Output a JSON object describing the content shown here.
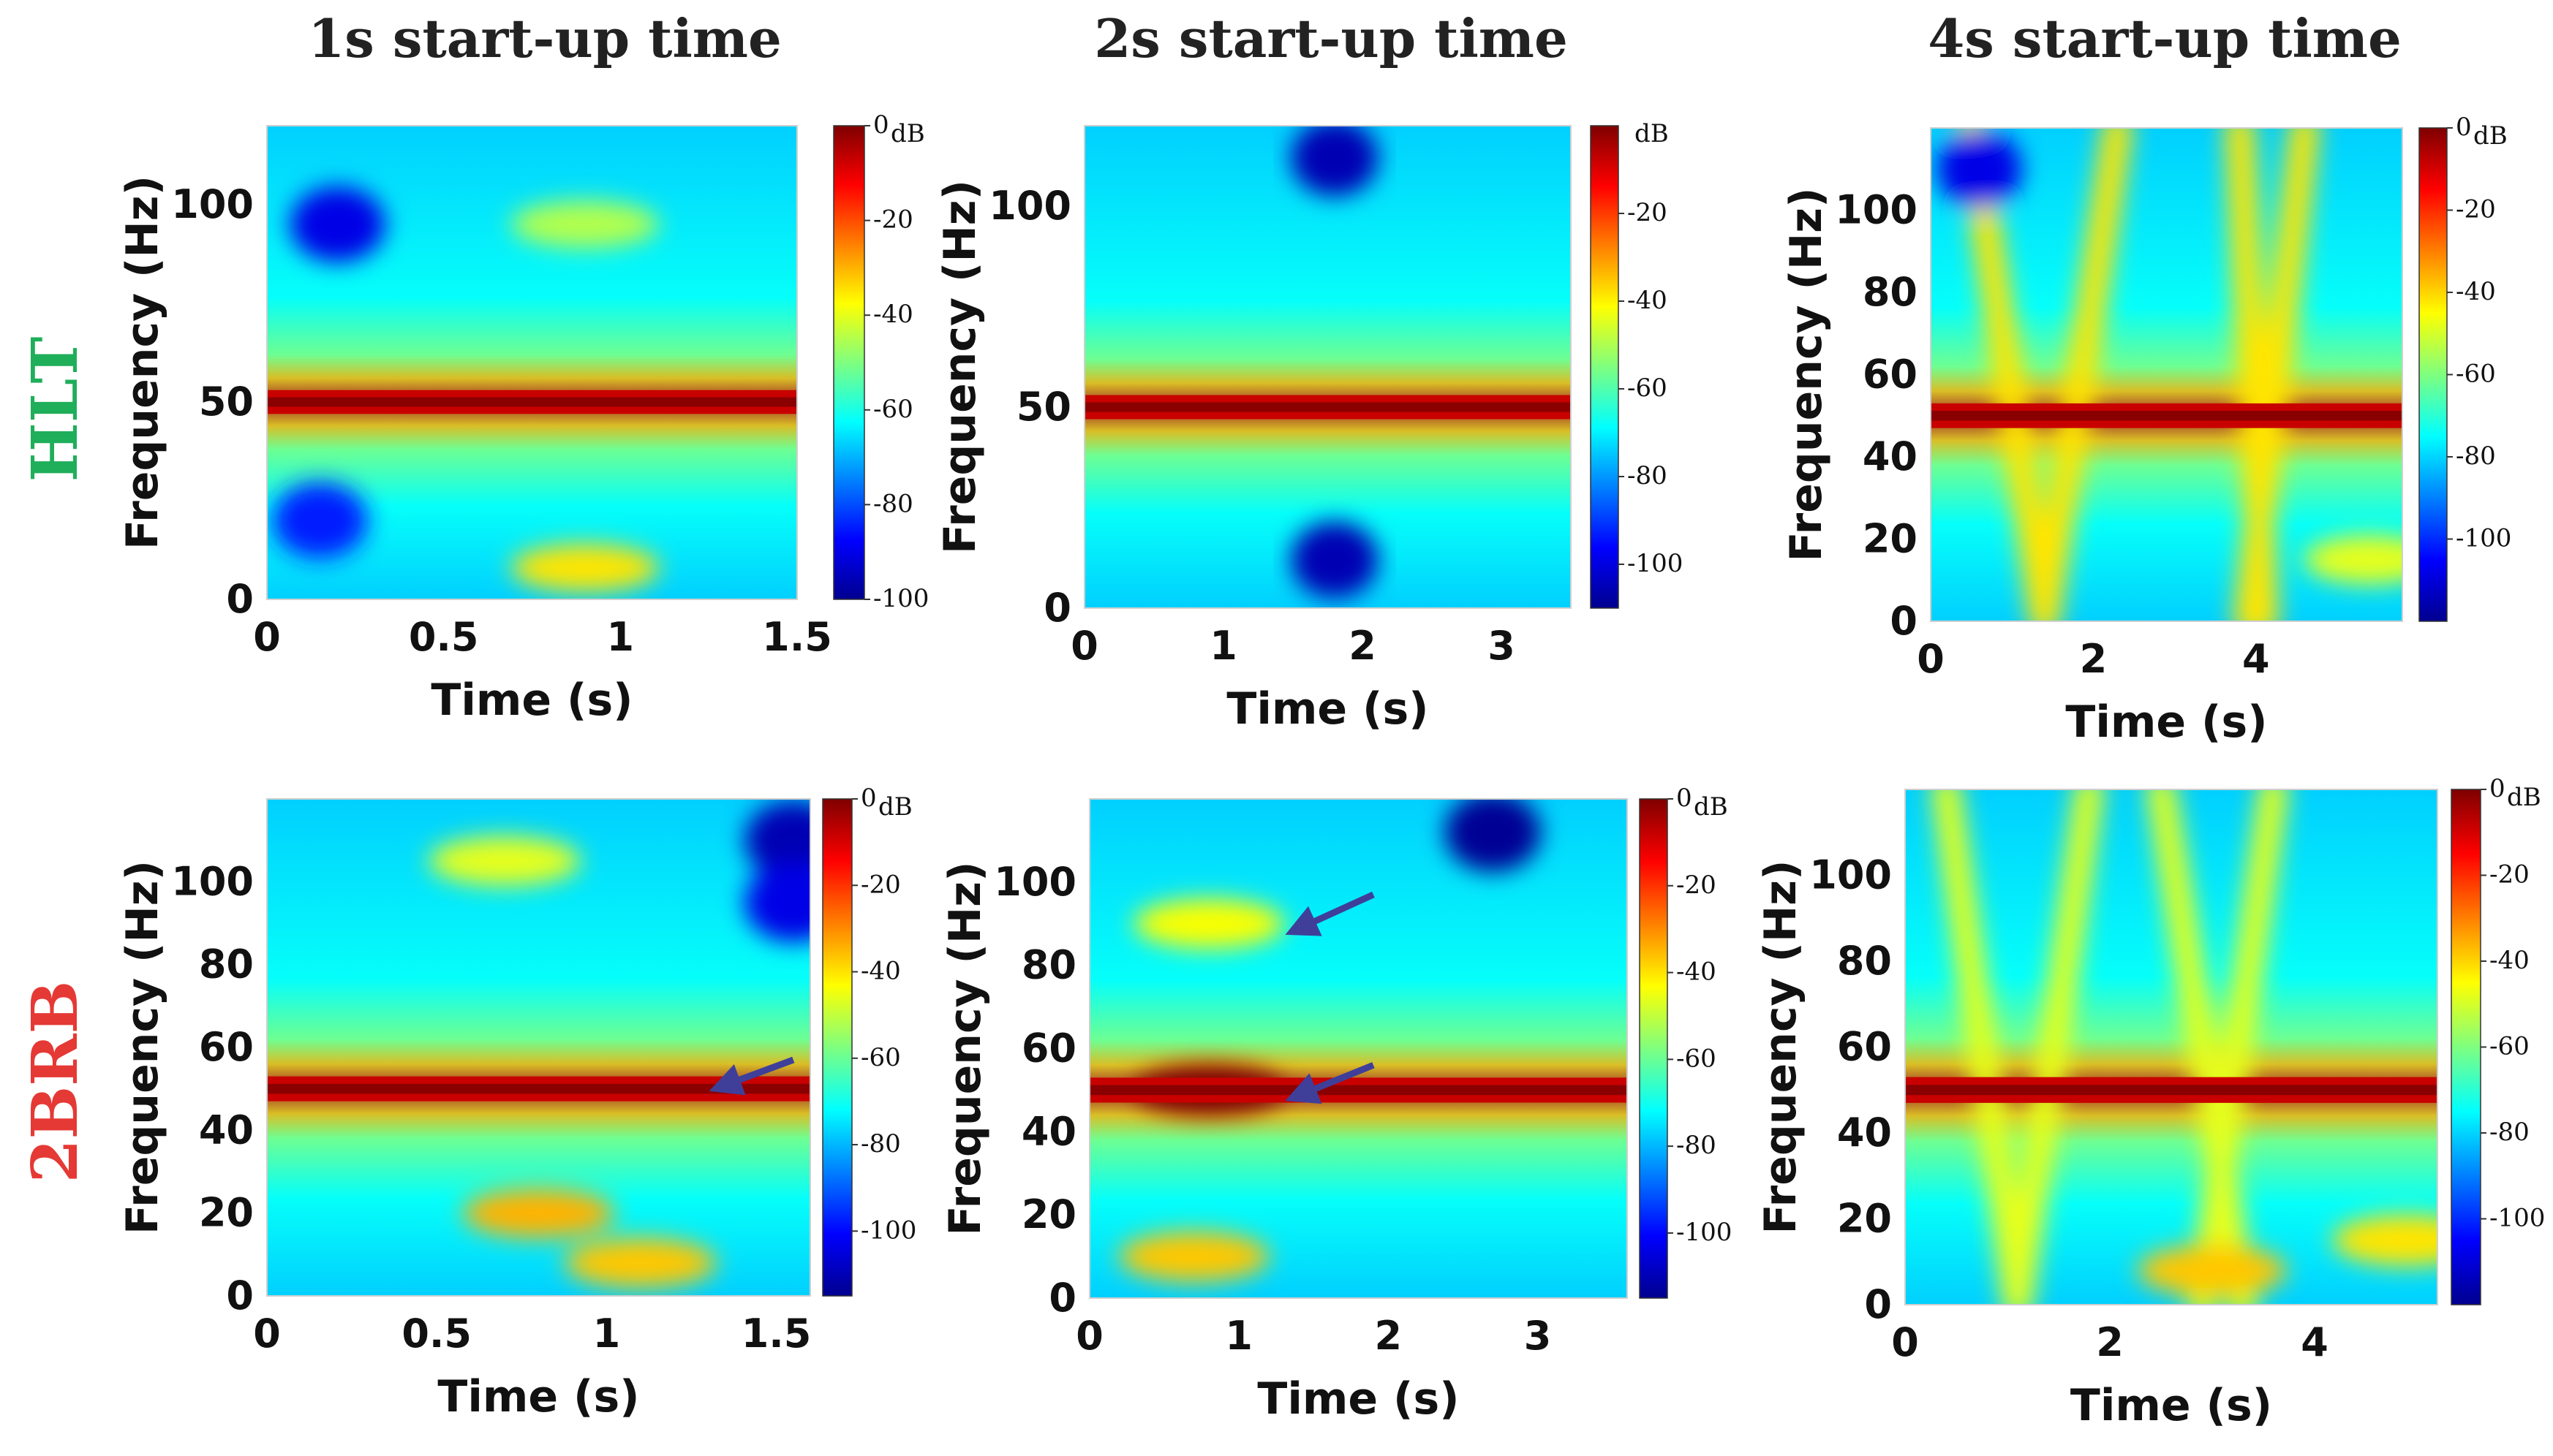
{
  "figure": {
    "column_titles": [
      "1s start-up time",
      "2s start-up time",
      "4s start-up time"
    ],
    "row_labels": [
      "HLT",
      "2BRB"
    ],
    "colors": {
      "HLT": "#1fae5a",
      "2BRB": "#e53935",
      "arrow": "#3f3f9a"
    },
    "colormap": "jet"
  },
  "chart_data": [
    {
      "id": "HLT-1s",
      "type": "heatmap",
      "row": "HLT",
      "title": "1s start-up time",
      "xlabel": "Time (s)",
      "ylabel": "Frequency (Hz)",
      "xlim": [
        0,
        1.5
      ],
      "ylim": [
        0,
        120
      ],
      "xticks": [
        0,
        0.5,
        1,
        1.5
      ],
      "xtick_labels": [
        "0",
        "0.5",
        "1",
        "1.5"
      ],
      "yticks": [
        0,
        50,
        100
      ],
      "ytick_labels": [
        "0",
        "50",
        "100"
      ],
      "colorbar": {
        "range_db": [
          -100,
          0
        ],
        "ticks": [
          0,
          -20,
          -40,
          -60,
          -80,
          -100
        ],
        "tick_labels": [
          "0",
          "-20",
          "-40",
          "-60",
          "-80",
          "-100"
        ],
        "unit": "dB"
      },
      "features": [
        {
          "kind": "line",
          "t": [
            0,
            1.5
          ],
          "f": [
            50,
            50
          ],
          "db": -2
        },
        {
          "kind": "blob",
          "t": 0.9,
          "f": 8,
          "db": -35
        },
        {
          "kind": "blob",
          "t": 0.9,
          "f": 95,
          "db": -45
        },
        {
          "kind": "cold",
          "t": 0.2,
          "f": 95,
          "db": -90
        },
        {
          "kind": "cold",
          "t": 0.15,
          "f": 20,
          "db": -85
        }
      ],
      "arrows": []
    },
    {
      "id": "HLT-2s",
      "type": "heatmap",
      "row": "HLT",
      "title": "2s start-up time",
      "xlabel": "Time (s)",
      "ylabel": "Frequency (Hz)",
      "xlim": [
        0,
        3.5
      ],
      "ylim": [
        0,
        120
      ],
      "xticks": [
        0,
        1,
        2,
        3
      ],
      "xtick_labels": [
        "0",
        "1",
        "2",
        "3"
      ],
      "yticks": [
        0,
        50,
        100
      ],
      "ytick_labels": [
        "0",
        "50",
        "100"
      ],
      "colorbar": {
        "range_db": [
          -110,
          0
        ],
        "ticks": [
          -20,
          -40,
          -60,
          -80,
          -100
        ],
        "tick_labels": [
          "-20",
          "-40",
          "-60",
          "-80",
          "-100"
        ],
        "unit": "dB"
      },
      "features": [
        {
          "kind": "line",
          "t": [
            0,
            3.5
          ],
          "f": [
            50,
            50
          ],
          "db": -2
        },
        {
          "kind": "cold",
          "t": 1.8,
          "f": 112,
          "db": -95
        },
        {
          "kind": "cold",
          "t": 1.8,
          "f": 12,
          "db": -95
        }
      ],
      "arrows": []
    },
    {
      "id": "HLT-4s",
      "type": "heatmap",
      "row": "HLT",
      "title": "4s start-up time",
      "xlabel": "Time (s)",
      "ylabel": "Frequency (Hz)",
      "xlim": [
        0,
        5.8
      ],
      "ylim": [
        0,
        120
      ],
      "xticks": [
        0,
        2,
        4
      ],
      "xtick_labels": [
        "0",
        "2",
        "4"
      ],
      "yticks": [
        0,
        20,
        40,
        60,
        80,
        100
      ],
      "ytick_labels": [
        "0",
        "20",
        "40",
        "60",
        "80",
        "100"
      ],
      "colorbar": {
        "range_db": [
          -120,
          0
        ],
        "ticks": [
          0,
          -20,
          -40,
          -60,
          -80,
          -100
        ],
        "tick_labels": [
          "0",
          "-20",
          "-40",
          "-60",
          "-80",
          "-100"
        ],
        "unit": "dB"
      },
      "features": [
        {
          "kind": "line",
          "t": [
            0,
            5.8
          ],
          "f": [
            50,
            50
          ],
          "db": -2
        },
        {
          "kind": "ridge",
          "t": [
            1.4,
            0.5
          ],
          "f": [
            0,
            120
          ],
          "db": -35
        },
        {
          "kind": "ridge",
          "t": [
            1.4,
            2.3
          ],
          "f": [
            0,
            120
          ],
          "db": -35
        },
        {
          "kind": "ridge",
          "t": [
            3.9,
            4.6
          ],
          "f": [
            0,
            120
          ],
          "db": -35
        },
        {
          "kind": "ridge",
          "t": [
            4.1,
            3.8
          ],
          "f": [
            0,
            120
          ],
          "db": -35
        },
        {
          "kind": "blob",
          "t": 5.4,
          "f": 15,
          "db": -40
        },
        {
          "kind": "cold",
          "t": 0.6,
          "f": 110,
          "db": -90
        }
      ],
      "arrows": []
    },
    {
      "id": "2BRB-1s",
      "type": "heatmap",
      "row": "2BRB",
      "title": "",
      "xlabel": "Time (s)",
      "ylabel": "Frequency (Hz)",
      "xlim": [
        0,
        1.6
      ],
      "ylim": [
        0,
        120
      ],
      "xticks": [
        0,
        0.5,
        1,
        1.5
      ],
      "xtick_labels": [
        "0",
        "0.5",
        "1",
        "1.5"
      ],
      "yticks": [
        0,
        20,
        40,
        60,
        80,
        100
      ],
      "ytick_labels": [
        "0",
        "20",
        "40",
        "60",
        "80",
        "100"
      ],
      "colorbar": {
        "range_db": [
          -115,
          0
        ],
        "ticks": [
          0,
          -20,
          -40,
          -60,
          -80,
          -100
        ],
        "tick_labels": [
          "0",
          "-20",
          "-40",
          "-60",
          "-80",
          "-100"
        ],
        "unit": "dB"
      },
      "features": [
        {
          "kind": "line",
          "t": [
            0,
            1.6
          ],
          "f": [
            50,
            50
          ],
          "db": -2
        },
        {
          "kind": "blob",
          "t": 0.8,
          "f": 20,
          "db": -30
        },
        {
          "kind": "blob",
          "t": 1.1,
          "f": 8,
          "db": -32
        },
        {
          "kind": "blob",
          "t": 0.7,
          "f": 105,
          "db": -40
        },
        {
          "kind": "cold",
          "t": 1.55,
          "f": 110,
          "db": -95
        },
        {
          "kind": "cold",
          "t": 1.55,
          "f": 95,
          "db": -90
        }
      ],
      "arrows": [
        {
          "tip_t": 1.32,
          "tip_f": 50,
          "tail_t": 1.55,
          "tail_f": 57
        }
      ]
    },
    {
      "id": "2BRB-2s",
      "type": "heatmap",
      "row": "2BRB",
      "title": "",
      "xlabel": "Time (s)",
      "ylabel": "Frequency (Hz)",
      "xlim": [
        0,
        3.6
      ],
      "ylim": [
        0,
        120
      ],
      "xticks": [
        0,
        1,
        2,
        3
      ],
      "xtick_labels": [
        "0",
        "1",
        "2",
        "3"
      ],
      "yticks": [
        0,
        20,
        40,
        60,
        80,
        100
      ],
      "ytick_labels": [
        "0",
        "20",
        "40",
        "60",
        "80",
        "100"
      ],
      "colorbar": {
        "range_db": [
          -115,
          0
        ],
        "ticks": [
          0,
          -20,
          -40,
          -60,
          -80,
          -100
        ],
        "tick_labels": [
          "0",
          "-20",
          "-40",
          "-60",
          "-80",
          "-100"
        ],
        "unit": "dB"
      },
      "features": [
        {
          "kind": "line",
          "t": [
            0,
            3.6
          ],
          "f": [
            50,
            50
          ],
          "db": -2
        },
        {
          "kind": "blob",
          "t": 0.8,
          "f": 50,
          "db": 0
        },
        {
          "kind": "blob",
          "t": 0.7,
          "f": 10,
          "db": -32
        },
        {
          "kind": "blob",
          "t": 0.8,
          "f": 90,
          "db": -38
        },
        {
          "kind": "cold",
          "t": 2.7,
          "f": 112,
          "db": -98
        }
      ],
      "arrows": [
        {
          "tip_t": 1.35,
          "tip_f": 88,
          "tail_t": 1.9,
          "tail_f": 97
        },
        {
          "tip_t": 1.35,
          "tip_f": 48,
          "tail_t": 1.9,
          "tail_f": 56
        }
      ]
    },
    {
      "id": "2BRB-4s",
      "type": "heatmap",
      "row": "2BRB",
      "title": "",
      "xlabel": "Time (s)",
      "ylabel": "Frequency (Hz)",
      "xlim": [
        0,
        5.2
      ],
      "ylim": [
        0,
        120
      ],
      "xticks": [
        0,
        2,
        4
      ],
      "xtick_labels": [
        "0",
        "2",
        "4"
      ],
      "yticks": [
        0,
        20,
        40,
        60,
        80,
        100
      ],
      "ytick_labels": [
        "0",
        "20",
        "40",
        "60",
        "80",
        "100"
      ],
      "colorbar": {
        "range_db": [
          -120,
          0
        ],
        "ticks": [
          0,
          -20,
          -40,
          -60,
          -80,
          -100
        ],
        "tick_labels": [
          "0",
          "-20",
          "-40",
          "-60",
          "-80",
          "-100"
        ],
        "unit": "dB"
      },
      "features": [
        {
          "kind": "line",
          "t": [
            0,
            5.2
          ],
          "f": [
            50,
            50
          ],
          "db": -2
        },
        {
          "kind": "ridge",
          "t": [
            1.1,
            0.4
          ],
          "f": [
            0,
            120
          ],
          "db": -40
        },
        {
          "kind": "ridge",
          "t": [
            1.1,
            1.8
          ],
          "f": [
            0,
            120
          ],
          "db": -40
        },
        {
          "kind": "ridge",
          "t": [
            2.9,
            3.6
          ],
          "f": [
            0,
            120
          ],
          "db": -40
        },
        {
          "kind": "ridge",
          "t": [
            3.3,
            2.5
          ],
          "f": [
            0,
            120
          ],
          "db": -40
        },
        {
          "kind": "blob",
          "t": 3.0,
          "f": 8,
          "db": -32
        },
        {
          "kind": "blob",
          "t": 4.9,
          "f": 15,
          "db": -35
        }
      ],
      "arrows": []
    }
  ]
}
